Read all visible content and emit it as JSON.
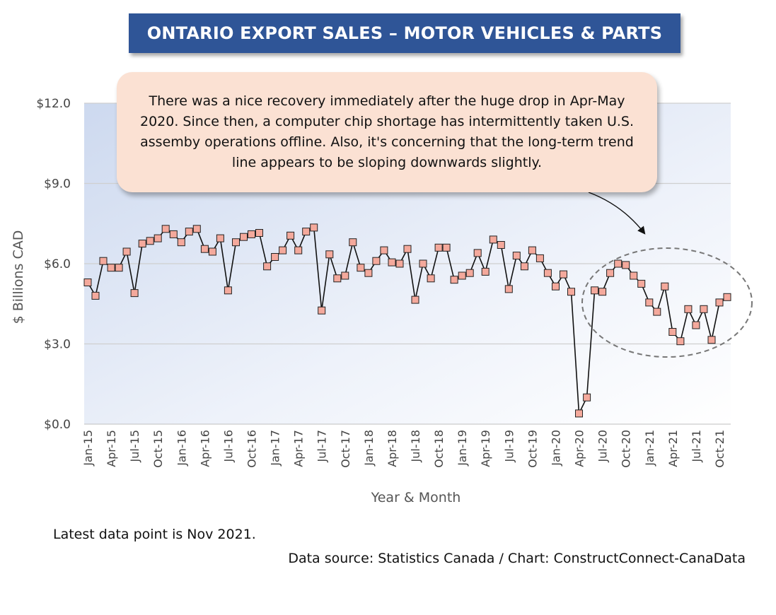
{
  "chart_data": {
    "type": "line",
    "title": "ONTARIO EXPORT SALES – MOTOR VEHICLES & PARTS",
    "xlabel": "Year & Month",
    "ylabel": "$ Billions CAD",
    "ylim": [
      0,
      12
    ],
    "yticks": [
      "$0.0",
      "$3.0",
      "$6.0",
      "$9.0",
      "$12.0"
    ],
    "ytick_values": [
      0,
      3,
      6,
      9,
      12
    ],
    "xtick_labels": [
      "Jan-15",
      "Apr-15",
      "Jul-15",
      "Oct-15",
      "Jan-16",
      "Apr-16",
      "Jul-16",
      "Oct-16",
      "Jan-17",
      "Apr-17",
      "Jul-17",
      "Oct-17",
      "Jan-18",
      "Apr-18",
      "Jul-18",
      "Oct-18",
      "Jan-19",
      "Apr-19",
      "Jul-19",
      "Oct-19",
      "Jan-20",
      "Apr-20",
      "Jul-20",
      "Oct-20",
      "Jan-21",
      "Apr-21",
      "Jul-21",
      "Oct-21"
    ],
    "grid": true,
    "series": [
      {
        "color": "#f4a99c",
        "values": [
          5.3,
          4.8,
          6.1,
          5.85,
          5.85,
          6.45,
          4.9,
          6.75,
          6.85,
          6.95,
          7.3,
          7.1,
          6.8,
          7.2,
          7.3,
          6.55,
          6.45,
          6.95,
          5.0,
          6.8,
          7.0,
          7.1,
          7.15,
          5.9,
          6.25,
          6.5,
          7.05,
          6.5,
          7.2,
          7.35,
          4.25,
          6.35,
          5.45,
          5.55,
          6.8,
          5.85,
          5.65,
          6.1,
          6.5,
          6.05,
          6.0,
          6.55,
          4.65,
          6.0,
          5.45,
          6.6,
          6.6,
          5.4,
          5.55,
          5.65,
          6.4,
          5.7,
          6.9,
          6.7,
          5.05,
          6.3,
          5.9,
          6.5,
          6.2,
          5.65,
          5.15,
          5.6,
          4.95,
          0.4,
          1.0,
          5.0,
          4.95,
          5.65,
          6.0,
          5.95,
          5.55,
          5.25,
          4.55,
          4.2,
          5.15,
          3.45,
          3.1,
          4.3,
          3.7,
          4.3,
          3.15,
          4.55,
          4.75
        ]
      }
    ]
  },
  "annotation_text": "There was a nice recovery immediately after the huge drop in Apr-May 2020. Since then, a computer chip shortage has intermittently taken U.S. assemby operations offline. Also, it's concerning that the long-term trend line appears to be sloping downwards slightly.",
  "notes": {
    "latest": "Latest data point is Nov 2021.",
    "source": "Data source: Statistics Canada / Chart: ConstructConnect-CanaData"
  },
  "colors": {
    "title_bg": "#2f5597",
    "plot_gradient_top": "#cdd9ef",
    "marker_fill": "#f4a99c",
    "callout_bg": "#fbe1d3"
  }
}
